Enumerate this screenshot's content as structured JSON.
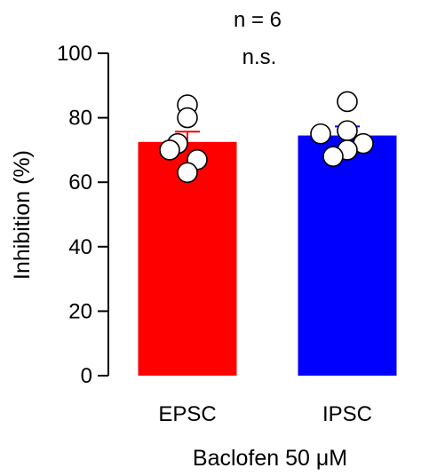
{
  "chart_data": {
    "type": "bar",
    "categories": [
      "EPSC",
      "IPSC"
    ],
    "values": [
      72.5,
      74.5
    ],
    "sem": [
      3.2,
      2.8
    ],
    "points": [
      [
        84,
        80,
        72,
        70,
        67,
        63
      ],
      [
        85,
        76,
        75,
        72,
        70,
        68
      ]
    ],
    "colors": [
      "#ff0000",
      "#0000ff"
    ],
    "ylabel": "Inhibition (%)",
    "xlabel": "Baclofen 50 μM",
    "ylim": [
      0,
      100
    ],
    "yticks": [
      "0",
      "20",
      "40",
      "60",
      "80",
      "100"
    ],
    "annotations": {
      "n": "n = 6",
      "significance": "n.s."
    },
    "grid": false,
    "legend": "none"
  }
}
